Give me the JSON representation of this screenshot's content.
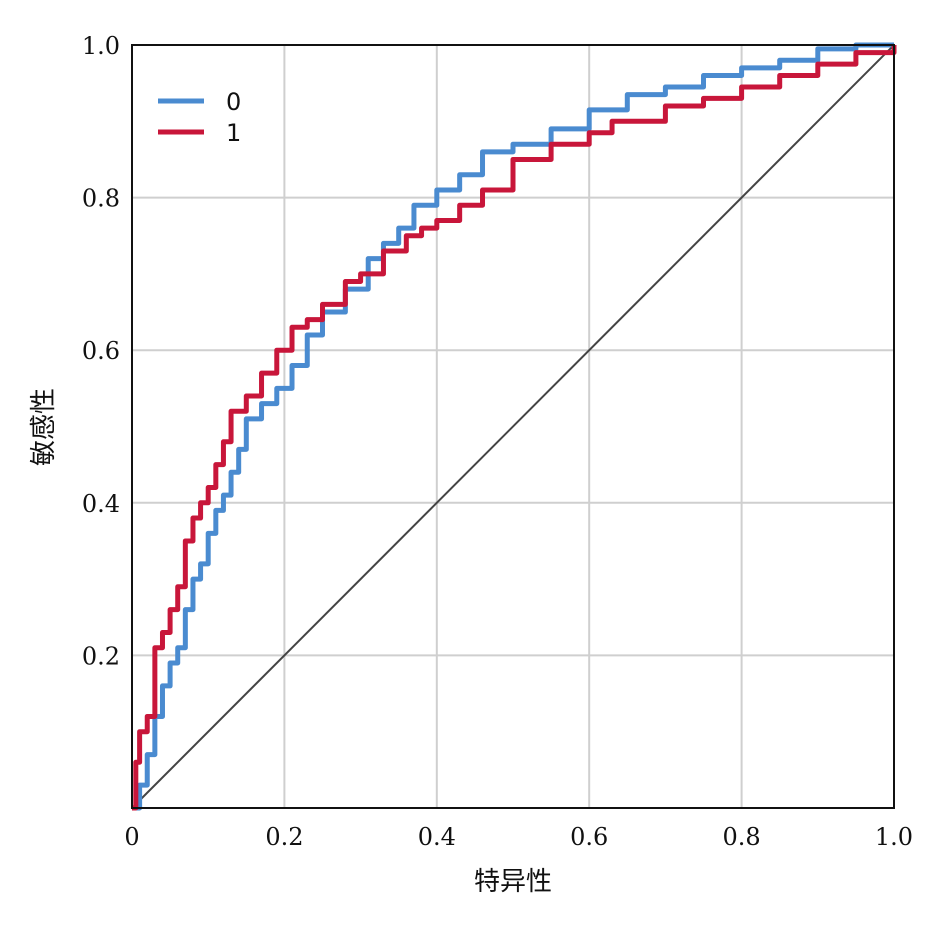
{
  "chart_data": {
    "type": "line",
    "title": "",
    "xlabel": "特异性",
    "ylabel": "敏感性",
    "xlim": [
      0,
      1
    ],
    "ylim": [
      0,
      1
    ],
    "grid": true,
    "legend_position": "top-left",
    "x_tick_labels": [
      "0",
      "0.2",
      "0.4",
      "0.6",
      "0.8",
      "1.0"
    ],
    "x_ticks": [
      0,
      0.2,
      0.4,
      0.6,
      0.8,
      1.0
    ],
    "y_tick_labels": [
      "0.2",
      "0.4",
      "0.6",
      "0.8",
      "1.0"
    ],
    "y_ticks": [
      0.2,
      0.4,
      0.6,
      0.8,
      1.0
    ],
    "reference_line": {
      "x": [
        0,
        1
      ],
      "y": [
        0,
        1
      ],
      "color": "#444444"
    },
    "series": [
      {
        "name": "0",
        "color": "#4a8bd0",
        "x": [
          0,
          0.01,
          0.02,
          0.03,
          0.04,
          0.05,
          0.06,
          0.07,
          0.08,
          0.09,
          0.1,
          0.11,
          0.12,
          0.13,
          0.14,
          0.15,
          0.17,
          0.19,
          0.21,
          0.23,
          0.25,
          0.28,
          0.31,
          0.33,
          0.35,
          0.37,
          0.4,
          0.43,
          0.46,
          0.5,
          0.55,
          0.6,
          0.65,
          0.7,
          0.75,
          0.8,
          0.85,
          0.9,
          0.95,
          1.0
        ],
        "y": [
          0,
          0.03,
          0.07,
          0.12,
          0.16,
          0.19,
          0.21,
          0.26,
          0.3,
          0.32,
          0.36,
          0.39,
          0.41,
          0.44,
          0.47,
          0.51,
          0.53,
          0.55,
          0.58,
          0.62,
          0.65,
          0.68,
          0.72,
          0.74,
          0.76,
          0.79,
          0.81,
          0.83,
          0.86,
          0.87,
          0.89,
          0.915,
          0.935,
          0.945,
          0.96,
          0.97,
          0.98,
          0.995,
          1.0,
          1.0
        ]
      },
      {
        "name": "1",
        "color": "#c8163a",
        "x": [
          0,
          0.005,
          0.01,
          0.02,
          0.03,
          0.04,
          0.05,
          0.06,
          0.07,
          0.08,
          0.09,
          0.1,
          0.11,
          0.12,
          0.13,
          0.15,
          0.17,
          0.19,
          0.21,
          0.23,
          0.25,
          0.28,
          0.3,
          0.33,
          0.36,
          0.38,
          0.4,
          0.43,
          0.46,
          0.5,
          0.55,
          0.6,
          0.63,
          0.67,
          0.7,
          0.75,
          0.8,
          0.85,
          0.9,
          0.95,
          1.0
        ],
        "y": [
          0,
          0.06,
          0.1,
          0.12,
          0.21,
          0.23,
          0.26,
          0.29,
          0.35,
          0.38,
          0.4,
          0.42,
          0.45,
          0.48,
          0.52,
          0.54,
          0.57,
          0.6,
          0.63,
          0.64,
          0.66,
          0.69,
          0.7,
          0.73,
          0.75,
          0.76,
          0.77,
          0.79,
          0.81,
          0.85,
          0.87,
          0.885,
          0.9,
          0.9,
          0.92,
          0.93,
          0.945,
          0.96,
          0.975,
          0.99,
          1.0
        ]
      }
    ]
  }
}
